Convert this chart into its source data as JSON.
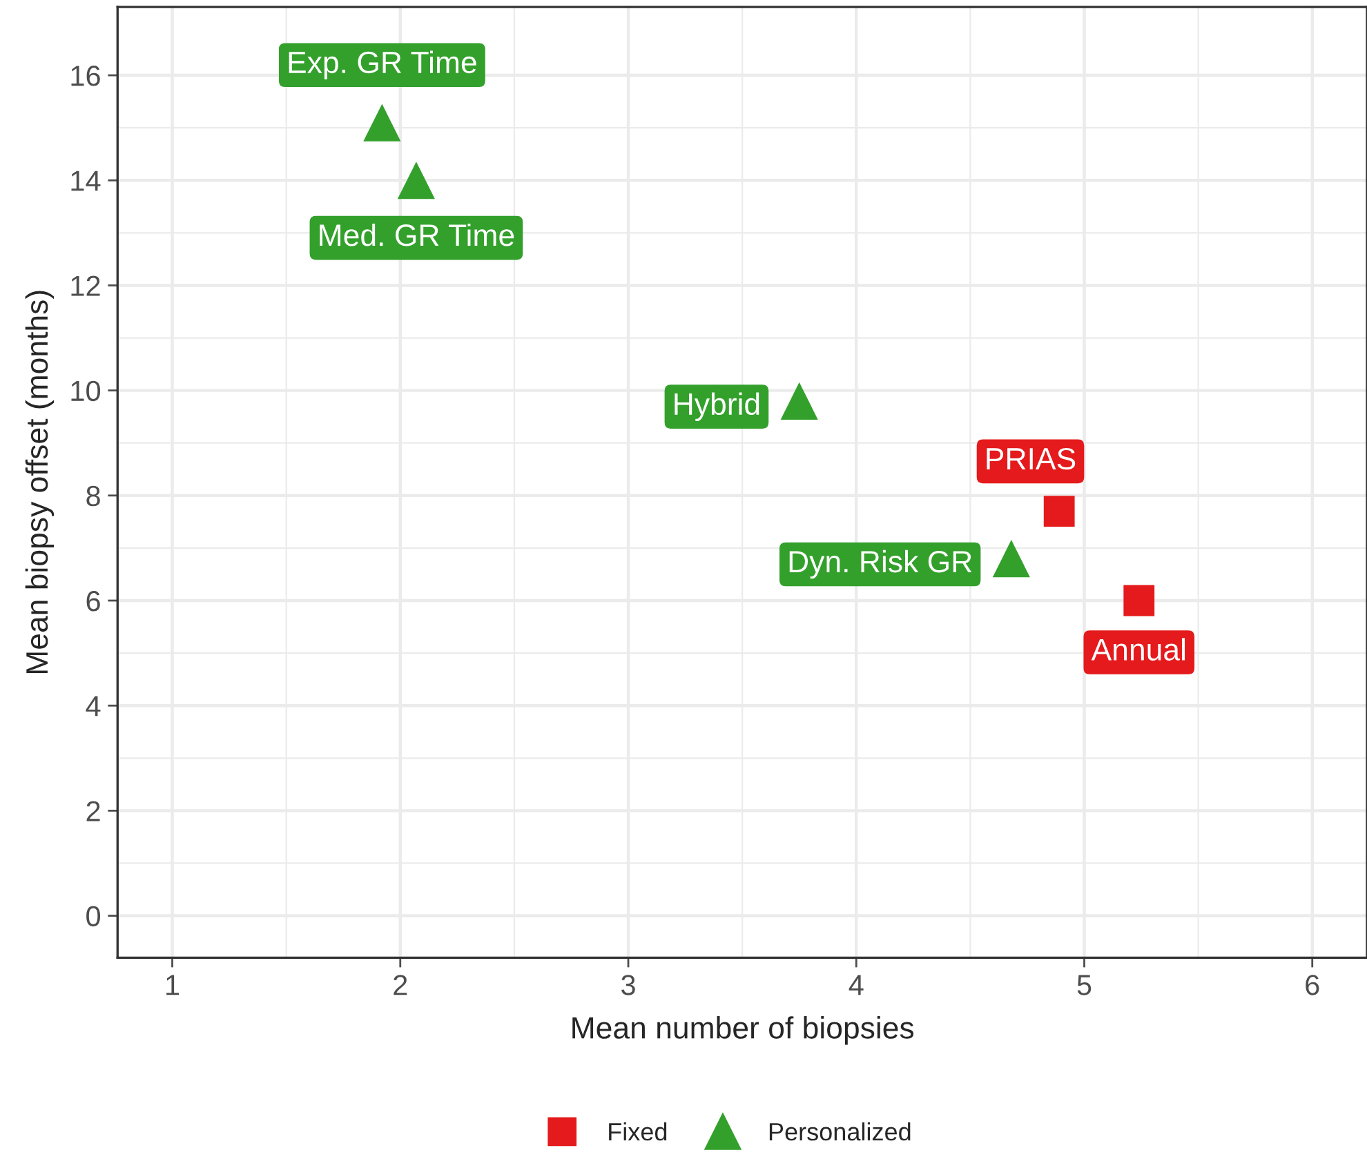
{
  "chart_data": {
    "type": "scatter",
    "xlabel": "Mean number of biopsies",
    "ylabel": "Mean biopsy offset (months)",
    "xlim": [
      0.76,
      6.24
    ],
    "xticks": [
      1,
      2,
      3,
      4,
      5,
      6
    ],
    "ylim": [
      -0.8,
      17.3
    ],
    "yticks": [
      0,
      2,
      4,
      6,
      8,
      10,
      12,
      14,
      16
    ],
    "grid": true,
    "legend": "bottom",
    "series": [
      {
        "name": "Fixed",
        "color": "#e41a1c",
        "marker": "square",
        "x": [
          4.89,
          5.24
        ],
        "values": [
          7.7,
          6.0
        ]
      },
      {
        "name": "Personalized",
        "color": "#33a02c",
        "marker": "triangle",
        "x": [
          1.92,
          2.07,
          3.75,
          4.68
        ],
        "values": [
          15.1,
          14.0,
          9.8,
          6.8
        ]
      }
    ],
    "annotations": [
      {
        "text": "PRIAS",
        "x": 4.89,
        "y": 7.7
      },
      {
        "text": "Annual",
        "x": 5.24,
        "y": 6.0
      },
      {
        "text": "Exp. GR Time",
        "x": 1.92,
        "y": 15.1
      },
      {
        "text": "Med. GR Time",
        "x": 2.07,
        "y": 14.0
      },
      {
        "text": "Hybrid",
        "x": 3.75,
        "y": 9.8
      },
      {
        "text": "Dyn. Risk GR",
        "x": 4.68,
        "y": 6.8
      }
    ]
  }
}
